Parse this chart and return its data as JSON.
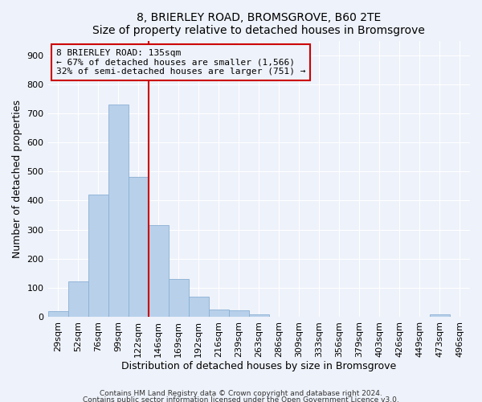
{
  "title": "8, BRIERLEY ROAD, BROMSGROVE, B60 2TE",
  "subtitle": "Size of property relative to detached houses in Bromsgrove",
  "xlabel": "Distribution of detached houses by size in Bromsgrove",
  "ylabel": "Number of detached properties",
  "categories": [
    "29sqm",
    "52sqm",
    "76sqm",
    "99sqm",
    "122sqm",
    "146sqm",
    "169sqm",
    "192sqm",
    "216sqm",
    "239sqm",
    "263sqm",
    "286sqm",
    "309sqm",
    "333sqm",
    "356sqm",
    "379sqm",
    "403sqm",
    "426sqm",
    "449sqm",
    "473sqm",
    "496sqm"
  ],
  "values": [
    20,
    122,
    420,
    730,
    480,
    315,
    130,
    68,
    25,
    22,
    9,
    0,
    0,
    0,
    0,
    0,
    0,
    0,
    0,
    8,
    0
  ],
  "bar_color": "#b8d0ea",
  "bar_edge_color": "#8aafd4",
  "vline_x": 4.5,
  "vline_color": "#cc0000",
  "annotation_line1": "8 BRIERLEY ROAD: 135sqm",
  "annotation_line2": "← 67% of detached houses are smaller (1,566)",
  "annotation_line3": "32% of semi-detached houses are larger (751) →",
  "annotation_box_color": "#cc0000",
  "annotation_text_color": "#000000",
  "ylim": [
    0,
    950
  ],
  "yticks": [
    0,
    100,
    200,
    300,
    400,
    500,
    600,
    700,
    800,
    900
  ],
  "title_fontsize": 10,
  "xlabel_fontsize": 9,
  "ylabel_fontsize": 9,
  "tick_fontsize": 8,
  "annot_fontsize": 8,
  "footer_line1": "Contains HM Land Registry data © Crown copyright and database right 2024.",
  "footer_line2": "Contains public sector information licensed under the Open Government Licence v3.0.",
  "bg_color": "#eef2fa",
  "grid_color": "#ffffff"
}
